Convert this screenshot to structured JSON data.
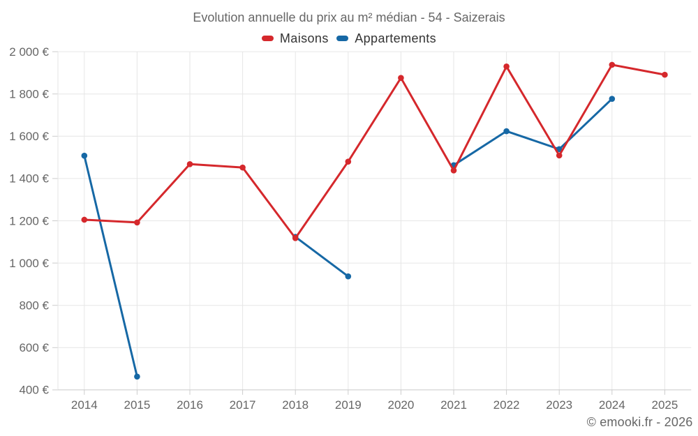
{
  "chart_data": {
    "type": "line",
    "title": "Evolution annuelle du prix au m² médian - 54 - Saizerais",
    "categories": [
      2014,
      2015,
      2016,
      2017,
      2018,
      2019,
      2020,
      2021,
      2022,
      2023,
      2024,
      2025
    ],
    "series": [
      {
        "name": "Appartements",
        "color": "#1668a5",
        "values": [
          1508,
          463,
          null,
          null,
          1124,
          937,
          null,
          1463,
          1624,
          1539,
          1777,
          null
        ]
      },
      {
        "name": "Maisons",
        "color": "#d5282c",
        "values": [
          1205,
          1192,
          1468,
          1452,
          1118,
          1480,
          1876,
          1438,
          1930,
          1509,
          1938,
          1891
        ]
      }
    ],
    "legend_order": [
      "Maisons",
      "Appartements"
    ],
    "legend_position": "top",
    "xlabel": "",
    "ylabel": "",
    "ylim": [
      400,
      2000
    ],
    "y_tick_step": 200,
    "y_tick_labels": [
      "400 €",
      "600 €",
      "800 €",
      "1 000 €",
      "1 200 €",
      "1 400 €",
      "1 600 €",
      "1 800 €",
      "2 000 €"
    ],
    "y_unit": "€",
    "grid": true,
    "marker_radius": 4.3,
    "line_width": 3,
    "credits": "© emooki.fr - 2026"
  },
  "styles": {
    "background": "#ffffff",
    "grid_color": "#e6e6e6",
    "axis_line_color": "#c9c9c9",
    "tick_color": "#cccccc",
    "title_color": "#666666",
    "axis_label_color": "#666666",
    "legend_text_color": "#333333",
    "credits_color": "#666666"
  }
}
